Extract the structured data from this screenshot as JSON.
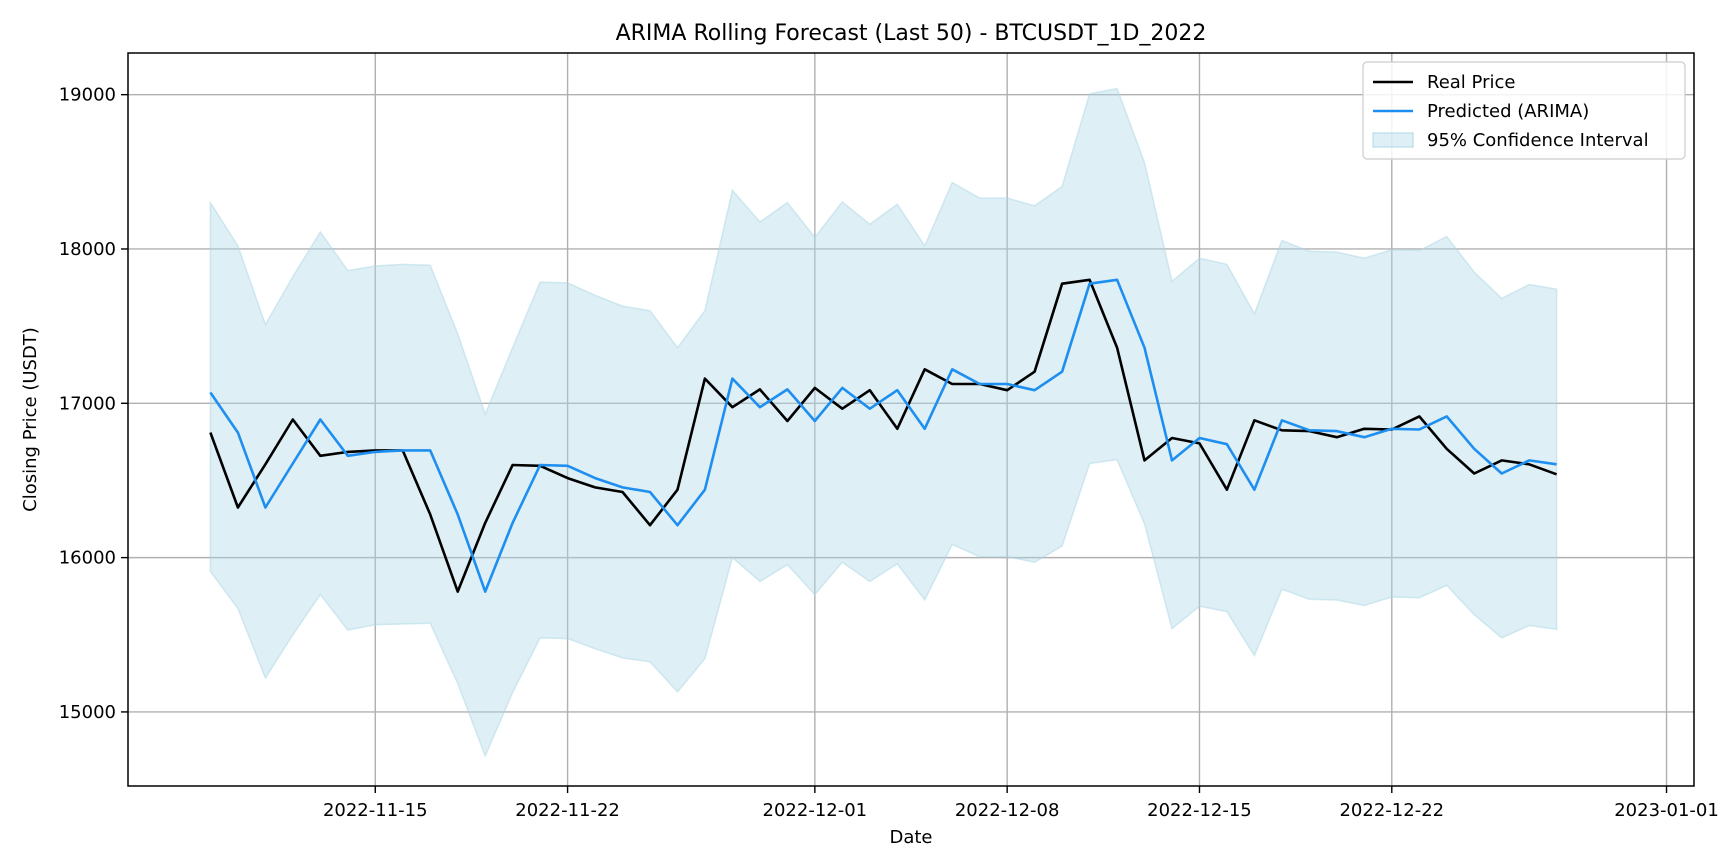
{
  "chart_data": {
    "type": "line",
    "title": "ARIMA Rolling Forecast (Last 50) - BTCUSDT_1D_2022",
    "xlabel": "Date",
    "ylabel": "Closing Price (USDT)",
    "x_start": "2022-11-09",
    "x_ticks": [
      "2022-11-15",
      "2022-11-22",
      "2022-12-01",
      "2022-12-08",
      "2022-12-15",
      "2022-12-22",
      "2023-01-01"
    ],
    "xlim": [
      "2022-11-06",
      "2023-01-02"
    ],
    "y_ticks": [
      15000,
      16000,
      17000,
      18000,
      19000
    ],
    "ylim": [
      14520,
      19270
    ],
    "grid": true,
    "legend_position": "top-right",
    "colors": {
      "real": "#000000",
      "predicted": "#1e8ff0",
      "band_fill": "#add8e6",
      "grid": "#b0b0b0"
    },
    "series": [
      {
        "name": "Real Price",
        "values": [
          16810,
          16325,
          16605,
          16895,
          16660,
          16685,
          16695,
          16695,
          16280,
          15780,
          16225,
          16600,
          16595,
          16515,
          16455,
          16425,
          16210,
          16440,
          17160,
          16975,
          17090,
          16885,
          17100,
          16965,
          17085,
          16835,
          17220,
          17125,
          17125,
          17085,
          17205,
          17775,
          17800,
          17360,
          16630,
          16775,
          16740,
          16440,
          16890,
          16825,
          16820,
          16780,
          16835,
          16830,
          16915,
          16705,
          16545,
          16630,
          16605,
          16540
        ]
      },
      {
        "name": "Predicted (ARIMA)",
        "values": [
          17070,
          16810,
          16325,
          16610,
          16895,
          16660,
          16685,
          16695,
          16695,
          16280,
          15780,
          16225,
          16600,
          16595,
          16515,
          16455,
          16425,
          16210,
          16440,
          17160,
          16975,
          17090,
          16885,
          17100,
          16965,
          17085,
          16835,
          17220,
          17125,
          17125,
          17085,
          17205,
          17775,
          17800,
          17360,
          16630,
          16775,
          16735,
          16440,
          16890,
          16825,
          16820,
          16780,
          16835,
          16830,
          16915,
          16705,
          16545,
          16630,
          16605
        ]
      },
      {
        "name": "95% Confidence Interval",
        "upper": [
          18300,
          18020,
          17510,
          17820,
          18110,
          17860,
          17890,
          17900,
          17895,
          17450,
          16930,
          17360,
          17785,
          17780,
          17700,
          17630,
          17600,
          17360,
          17600,
          18380,
          18175,
          18300,
          18075,
          18305,
          18160,
          18290,
          18020,
          18430,
          18330,
          18330,
          18280,
          18405,
          19005,
          19040,
          18560,
          17790,
          17940,
          17900,
          17580,
          18055,
          17985,
          17980,
          17940,
          17995,
          17990,
          18080,
          17850,
          17680,
          17770,
          17740
        ],
        "lower": [
          15910,
          15670,
          15220,
          15500,
          15760,
          15530,
          15565,
          15570,
          15575,
          15185,
          14715,
          15125,
          15480,
          15475,
          15410,
          15350,
          15325,
          15130,
          15345,
          16000,
          15845,
          15955,
          15760,
          15970,
          15845,
          15960,
          15725,
          16085,
          16005,
          16005,
          15970,
          16075,
          16610,
          16635,
          16220,
          15540,
          15685,
          15650,
          15365,
          15795,
          15730,
          15725,
          15690,
          15745,
          15740,
          15820,
          15630,
          15480,
          15560,
          15535
        ]
      }
    ]
  }
}
